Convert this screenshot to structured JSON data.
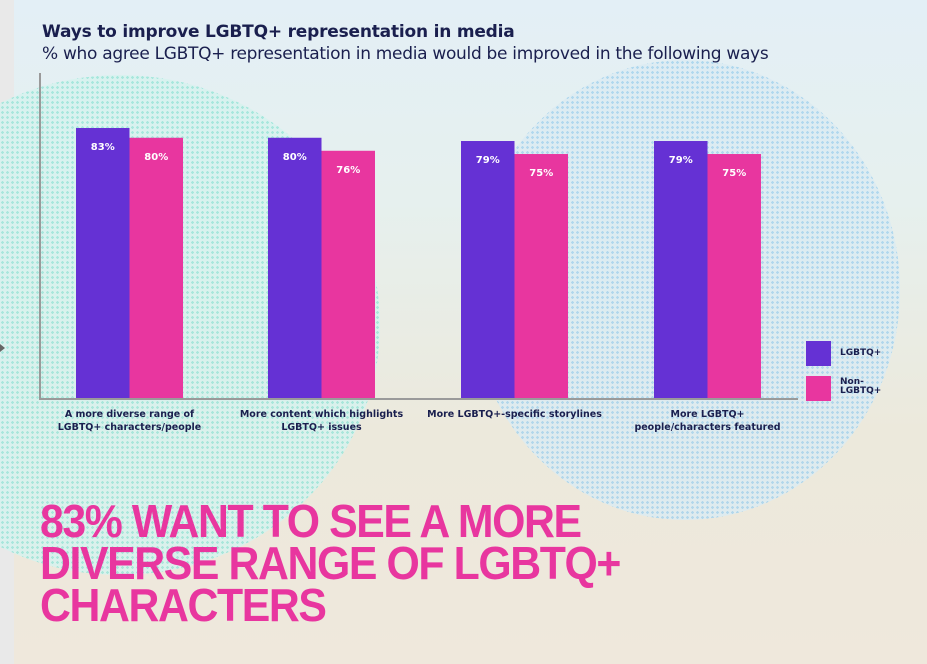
{
  "header": {
    "title": "Ways to improve LGBTQ+ representation in media",
    "subtitle": "% who agree LGBTQ+ representation in media would be improved in the following ways"
  },
  "chart_data": {
    "type": "bar",
    "title": "Ways to improve LGBTQ+ representation in media",
    "subtitle": "% who agree LGBTQ+ representation in media would be improved in the following ways",
    "categories": [
      "A more diverse range of LGBTQ+ characters/people",
      "More content which highlights LGBTQ+ issues",
      "More LGBTQ+-specific storylines",
      "More LGBTQ+ people/characters featured"
    ],
    "category_lines": [
      [
        "A more diverse range of",
        "LGBTQ+ characters/people"
      ],
      [
        "More content which highlights",
        "LGBTQ+ issues"
      ],
      [
        "More LGBTQ+-specific storylines"
      ],
      [
        "More LGBTQ+",
        "people/characters featured"
      ]
    ],
    "series": [
      {
        "name": "LGBTQ+",
        "color": "#6531d4",
        "values": [
          83,
          80,
          79,
          79
        ]
      },
      {
        "name": "Non-LGBTQ+",
        "color": "#e8369f",
        "values": [
          80,
          76,
          75,
          75
        ]
      }
    ],
    "value_suffix": "%",
    "xlabel": "",
    "ylabel": "",
    "ylim": [
      0,
      100
    ],
    "grid": false,
    "legend": "right"
  },
  "legend": {
    "items": [
      {
        "label": "LGBTQ+",
        "color": "#6531d4"
      },
      {
        "label": "Non-LGBTQ+",
        "label_lines": [
          "Non-",
          "LGBTQ+"
        ],
        "color": "#e8369f"
      }
    ]
  },
  "headline": {
    "lines": [
      "83% WANT TO SEE A MORE",
      "DIVERSE RANGE OF LGBTQ+",
      "CHARACTERS"
    ],
    "color": "#e8369f"
  },
  "colors": {
    "text_dark": "#1a1f4e",
    "axis": "#9a9a9a"
  }
}
